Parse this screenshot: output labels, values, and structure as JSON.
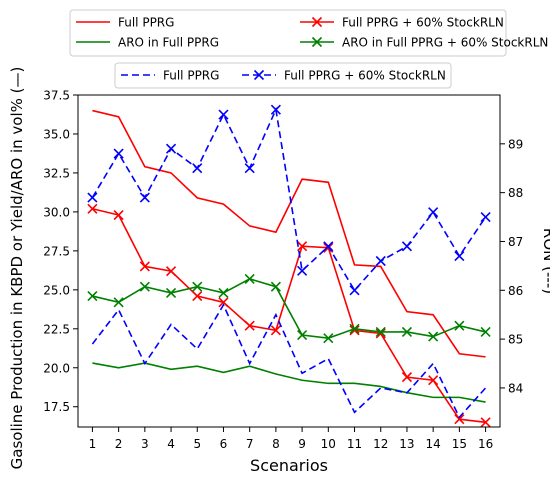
{
  "chart_data": {
    "type": "line",
    "x": [
      1,
      2,
      3,
      4,
      5,
      6,
      7,
      8,
      9,
      10,
      11,
      12,
      13,
      14,
      15,
      16
    ],
    "xlabel": "Scenarios",
    "ylabel": "Gasoline Production in KBPD or Yield/ARO in vol% (—)",
    "y2label": "RON (---)",
    "ylim": [
      16.2,
      37.5
    ],
    "y2lim": [
      83.2,
      90.0
    ],
    "yticks": [
      "17.5",
      "20.0",
      "22.5",
      "25.0",
      "27.5",
      "30.0",
      "32.5",
      "35.0",
      "37.5"
    ],
    "y2ticks": [
      "84",
      "85",
      "86",
      "87",
      "88",
      "89"
    ],
    "grid": false,
    "series": [
      {
        "name": "Full PPRG",
        "axis": "left",
        "color": "#ff0000",
        "style": "solid",
        "marker": "none",
        "values": [
          36.5,
          36.1,
          32.9,
          32.5,
          30.9,
          30.5,
          29.1,
          28.7,
          32.1,
          31.9,
          26.6,
          26.5,
          23.6,
          23.4,
          20.9,
          20.7
        ]
      },
      {
        "name": "Full PPRG + 60% StockRLN",
        "axis": "left",
        "color": "#ff0000",
        "style": "solid",
        "marker": "x",
        "values": [
          30.2,
          29.8,
          26.5,
          26.2,
          24.6,
          24.2,
          22.7,
          22.4,
          27.8,
          27.7,
          22.4,
          22.2,
          19.4,
          19.2,
          16.7,
          16.5
        ]
      },
      {
        "name": "ARO in Full PPRG",
        "axis": "left",
        "color": "#008000",
        "style": "solid",
        "marker": "none",
        "values": [
          20.3,
          20.0,
          20.3,
          19.9,
          20.1,
          19.7,
          20.1,
          19.6,
          19.2,
          19.0,
          19.0,
          18.8,
          18.4,
          18.1,
          18.1,
          17.8
        ]
      },
      {
        "name": "ARO in Full PPRG + 60% StockRLN",
        "axis": "left",
        "color": "#008000",
        "style": "solid",
        "marker": "x",
        "values": [
          24.6,
          24.2,
          25.2,
          24.8,
          25.2,
          24.8,
          25.7,
          25.2,
          22.1,
          21.9,
          22.5,
          22.3,
          22.3,
          22.0,
          22.7,
          22.3
        ]
      },
      {
        "name": "Full PPRG",
        "axis": "right",
        "color": "#0000ff",
        "style": "dashed",
        "marker": "none",
        "values": [
          84.9,
          85.6,
          84.5,
          85.3,
          84.8,
          85.7,
          84.5,
          85.5,
          84.3,
          84.6,
          83.5,
          84.0,
          83.9,
          84.5,
          83.4,
          84.0
        ]
      },
      {
        "name": "Full PPRG + 60% StockRLN",
        "axis": "right",
        "color": "#0000ff",
        "style": "dashed",
        "marker": "x",
        "values": [
          87.9,
          88.8,
          87.9,
          88.9,
          88.5,
          89.6,
          88.5,
          89.7,
          86.4,
          86.9,
          86.0,
          86.6,
          86.9,
          87.6,
          86.7,
          87.5
        ]
      }
    ],
    "legend_top": {
      "placement": "top",
      "entries": [
        {
          "label": "Full PPRG",
          "color": "#ff0000",
          "style": "solid",
          "marker": "none"
        },
        {
          "label": "Full PPRG + 60% StockRLN",
          "color": "#ff0000",
          "style": "solid",
          "marker": "x"
        },
        {
          "label": "ARO in Full PPRG",
          "color": "#008000",
          "style": "solid",
          "marker": "none"
        },
        {
          "label": "ARO in Full PPRG + 60% StockRLN",
          "color": "#008000",
          "style": "solid",
          "marker": "x"
        }
      ]
    },
    "legend_mid": {
      "placement": "top",
      "entries": [
        {
          "label": "Full PPRG",
          "color": "#0000ff",
          "style": "dashed",
          "marker": "none"
        },
        {
          "label": "Full PPRG + 60% StockRLN",
          "color": "#0000ff",
          "style": "dashed",
          "marker": "x"
        }
      ]
    }
  }
}
